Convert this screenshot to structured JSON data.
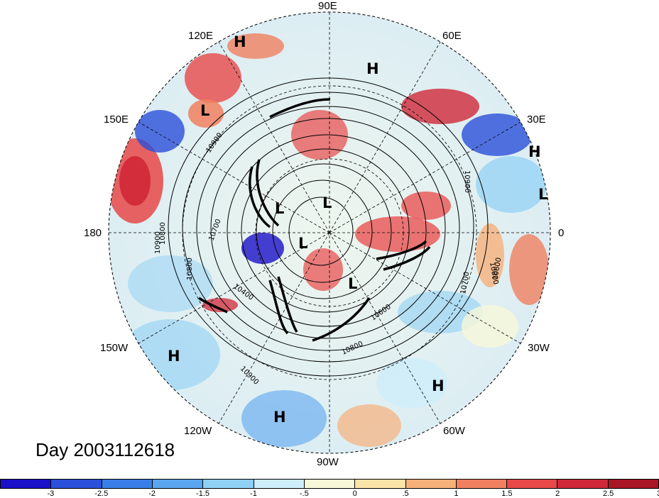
{
  "map": {
    "title": "Day 2003112618",
    "longitude_labels": [
      {
        "text": "90E",
        "id": "lon-90e"
      },
      {
        "text": "120E",
        "id": "lon-120e"
      },
      {
        "text": "60E",
        "id": "lon-60e"
      },
      {
        "text": "150E",
        "id": "lon-150e"
      },
      {
        "text": "30E",
        "id": "lon-30e"
      },
      {
        "text": "180",
        "id": "lon-180"
      },
      {
        "text": "0",
        "id": "lon-0"
      },
      {
        "text": "150W",
        "id": "lon-150w"
      },
      {
        "text": "30W",
        "id": "lon-30w"
      },
      {
        "text": "120W",
        "id": "lon-120w"
      },
      {
        "text": "60W",
        "id": "lon-60w"
      },
      {
        "text": "90W",
        "id": "lon-90w"
      }
    ],
    "pressure_centers": [
      "H",
      "H",
      "L",
      "H",
      "L",
      "L",
      "L",
      "L",
      "L",
      "H",
      "H",
      "H"
    ],
    "contour_labels": [
      "10900",
      "10800",
      "10700",
      "10400",
      "10600",
      "10800",
      "10900",
      "10900",
      "10800",
      "10700",
      "10800",
      "10900",
      "10600"
    ],
    "colorbar": {
      "colors": [
        "#1a10c8",
        "#2a4fd8",
        "#3a7fe8",
        "#5aa5f0",
        "#8fd0f5",
        "#cdeefa",
        "#f8f8d8",
        "#fbe4a8",
        "#f6b07a",
        "#f08060",
        "#e84848",
        "#d02838",
        "#a81525"
      ],
      "ticks": [
        "-3",
        "-2.5",
        "-2",
        "-1.5",
        "-1",
        "-.5",
        "0",
        ".5",
        "1",
        "1.5",
        "2",
        "2.5",
        "3"
      ]
    }
  }
}
